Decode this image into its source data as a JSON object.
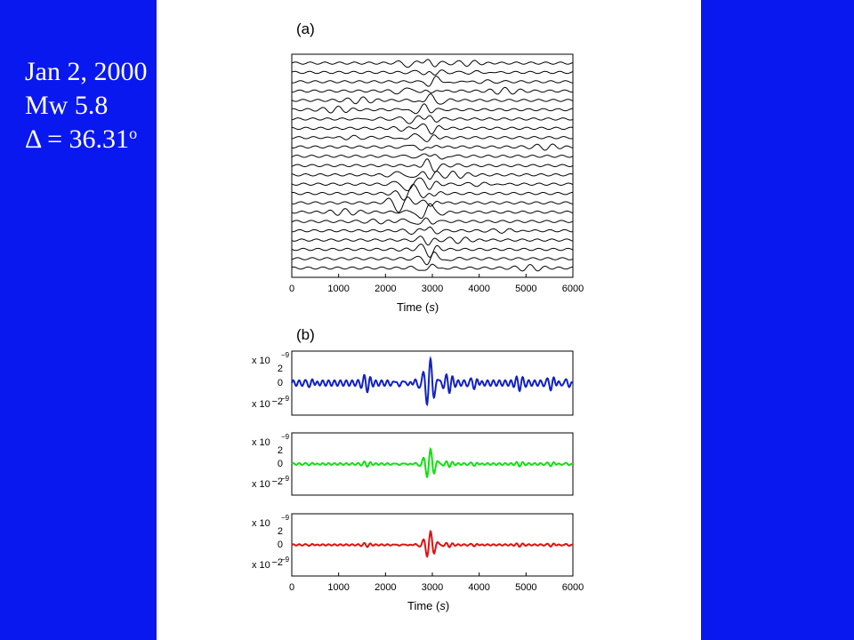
{
  "event": {
    "date": "Jan 2, 2000",
    "magnitude": "Mw 5.8",
    "distance_prefix": "Δ = 36.31",
    "distance_unit": "o"
  },
  "chart_data": [
    {
      "type": "line",
      "panel_label": "(a)",
      "xlabel_prefix": "Time (",
      "xlabel_var": "s",
      "xlabel_suffix": ")",
      "xlim": [
        0,
        6000
      ],
      "xticks": [
        0,
        1000,
        2000,
        3000,
        4000,
        5000,
        6000
      ],
      "trace_count": 23,
      "description": "stacked seismogram traces"
    },
    {
      "type": "line",
      "panel_label": "(b)",
      "xlabel_prefix": "Time (",
      "xlabel_var": "s",
      "xlabel_suffix": ")",
      "xlim": [
        0,
        6000
      ],
      "xticks": [
        0,
        1000,
        2000,
        3000,
        4000,
        5000,
        6000
      ],
      "ylim": [
        -2e-09,
        2e-09
      ],
      "ytick_labels": {
        "top": "2",
        "mid": "0",
        "bottom": "−2",
        "multiplier": "x 10",
        "exponent": "−9"
      },
      "series": [
        {
          "color": "#1020c8",
          "peak_time": 2950,
          "peak_amplitude": 1.6e-09,
          "noise_level": 0.25
        },
        {
          "color": "#10e010",
          "peak_time": 2950,
          "peak_amplitude": 1e-09,
          "noise_level": 0.08
        },
        {
          "color": "#e01010",
          "peak_time": 2950,
          "peak_amplitude": 9e-10,
          "noise_level": 0.06
        }
      ]
    }
  ]
}
